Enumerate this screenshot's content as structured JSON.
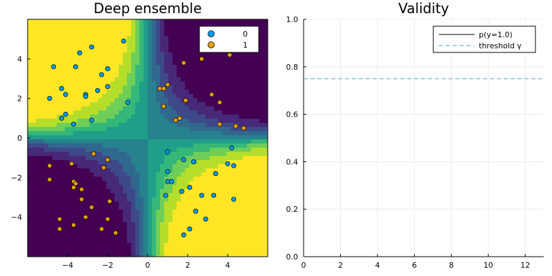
{
  "chart_data": [
    {
      "type": "contour-scatter",
      "title": "Deep ensemble",
      "xlim": [
        -6,
        6
      ],
      "ylim": [
        -6,
        6
      ],
      "x_ticks": [
        -4,
        -2,
        0,
        2,
        4
      ],
      "y_ticks": [
        -4,
        -2,
        0,
        2,
        4
      ],
      "x_tick_labels": [
        "−4",
        "−2",
        "0",
        "2",
        "4"
      ],
      "y_tick_labels": [
        "−4",
        "−2",
        "0",
        "2",
        "4"
      ],
      "grid": false,
      "legend_position": "top-right",
      "colormap": [
        "#440154",
        "#482878",
        "#3e4989",
        "#31688e",
        "#26828e",
        "#1f9e89",
        "#35b779",
        "#6ece58",
        "#b5de2b",
        "#fde725"
      ],
      "series": [
        {
          "name": "0",
          "color": "#009AF9",
          "points": [
            [
              -4.7,
              3.6
            ],
            [
              -3.4,
              4.3
            ],
            [
              -2.8,
              4.6
            ],
            [
              -1.2,
              4.9
            ],
            [
              -3.6,
              3.6
            ],
            [
              -2.0,
              3.5
            ],
            [
              -2.3,
              3.2
            ],
            [
              -4.3,
              2.5
            ],
            [
              -4.1,
              2.2
            ],
            [
              -3.1,
              2.2
            ],
            [
              -3.1,
              2.1
            ],
            [
              -2.5,
              2.4
            ],
            [
              -2.0,
              2.6
            ],
            [
              -4.9,
              2.0
            ],
            [
              -4.1,
              1.2
            ],
            [
              -4.3,
              1.0
            ],
            [
              -3.7,
              0.7
            ],
            [
              -2.8,
              0.9
            ],
            [
              -1.0,
              1.8
            ],
            [
              1.0,
              -0.7
            ],
            [
              4.2,
              -0.5
            ],
            [
              1.0,
              -1.7
            ],
            [
              1.8,
              -1.1
            ],
            [
              2.3,
              -1.2
            ],
            [
              4.0,
              -1.3
            ],
            [
              4.3,
              -1.4
            ],
            [
              1.0,
              -2.2
            ],
            [
              1.2,
              -2.2
            ],
            [
              2.1,
              -2.5
            ],
            [
              3.4,
              -1.8
            ],
            [
              0.9,
              -2.9
            ],
            [
              1.7,
              -2.7
            ],
            [
              2.7,
              -2.9
            ],
            [
              3.3,
              -2.9
            ],
            [
              4.3,
              -3.1
            ],
            [
              2.4,
              -3.7
            ],
            [
              2.9,
              -4.1
            ],
            [
              2.1,
              -4.6
            ],
            [
              1.8,
              -4.9
            ]
          ]
        },
        {
          "name": "1",
          "color": "#E26F46",
          "points": [
            [
              4.1,
              4.2
            ],
            [
              2.7,
              4.0
            ],
            [
              1.8,
              3.8
            ],
            [
              1.0,
              2.7
            ],
            [
              0.8,
              2.5
            ],
            [
              0.6,
              2.5
            ],
            [
              3.2,
              2.2
            ],
            [
              3.6,
              1.8
            ],
            [
              1.9,
              1.9
            ],
            [
              0.8,
              1.6
            ],
            [
              1.6,
              1.0
            ],
            [
              1.4,
              0.9
            ],
            [
              3.6,
              0.7
            ],
            [
              4.4,
              0.6
            ],
            [
              4.8,
              0.5
            ],
            [
              -2.7,
              -0.8
            ],
            [
              -2.0,
              -1.1
            ],
            [
              -3.8,
              -1.3
            ],
            [
              -2.2,
              -1.5
            ],
            [
              -4.9,
              -1.4
            ],
            [
              -4.9,
              -2.1
            ],
            [
              -3.7,
              -2.2
            ],
            [
              -3.6,
              -2.3
            ],
            [
              -3.7,
              -2.5
            ],
            [
              -3.3,
              -2.6
            ],
            [
              -3.3,
              -3.1
            ],
            [
              -1.9,
              -3.2
            ],
            [
              -2.8,
              -3.5
            ],
            [
              -3.1,
              -4.0
            ],
            [
              -2.0,
              -4.1
            ],
            [
              -4.4,
              -4.1
            ],
            [
              -3.7,
              -4.4
            ],
            [
              -2.3,
              -4.6
            ],
            [
              -4.4,
              -4.6
            ],
            [
              -1.6,
              -4.8
            ]
          ]
        }
      ]
    },
    {
      "type": "line",
      "title": "Validity",
      "xlim": [
        0,
        13
      ],
      "ylim": [
        0,
        1
      ],
      "x_ticks": [
        0,
        2,
        4,
        6,
        8,
        10,
        12
      ],
      "y_ticks": [
        0,
        0.2,
        0.4,
        0.6,
        0.8,
        1.0
      ],
      "x_tick_labels": [
        "0",
        "2",
        "4",
        "6",
        "8",
        "10",
        "12"
      ],
      "y_tick_labels": [
        "0.0",
        "0.2",
        "0.4",
        "0.6",
        "0.8",
        "1.0"
      ],
      "grid": true,
      "legend_position": "top-right",
      "series": [
        {
          "name": "p(y=1.0)",
          "color": "#000000",
          "style": "solid",
          "values": []
        },
        {
          "name": "threshold γ",
          "color": "#6CB4D8",
          "style": "dashed",
          "y": 0.75
        }
      ]
    }
  ]
}
